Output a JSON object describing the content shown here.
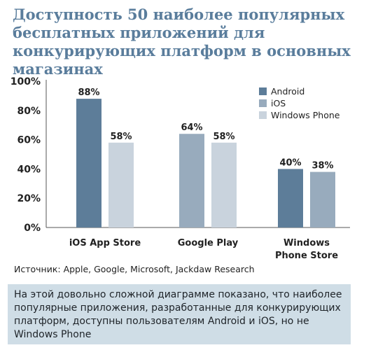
{
  "title": "Доступность 50 наиболее популярных бесплатных приложений для конкурирующих платформ в основных магазинах",
  "source": "Источник: Apple, Google, Microsoft, Jackdaw Research",
  "note": "На этой довольно сложной диаграмме показано, что наиболее популярные приложения, разработанные для конкурирующих платформ, доступны пользователям Android и iOS, но не Windows Phone",
  "colors": {
    "android": "#5d7d99",
    "ios": "#98abbd",
    "windows_phone": "#c9d3dd",
    "note_bg": "#cfdde6",
    "title": "#5a7d9c"
  },
  "chart_data": {
    "type": "bar",
    "categories": [
      [
        "iOS App Store"
      ],
      [
        "Google Play"
      ],
      [
        "Windows",
        "Phone Store"
      ]
    ],
    "series": [
      {
        "name": "Android",
        "color": "#5d7d99",
        "values": [
          88,
          null,
          40
        ]
      },
      {
        "name": "iOS",
        "color": "#98abbd",
        "values": [
          null,
          64,
          38
        ]
      },
      {
        "name": "Windows Phone",
        "color": "#c9d3dd",
        "values": [
          58,
          58,
          null
        ]
      }
    ],
    "value_suffix": "%",
    "yticks": [
      "0%",
      "20%",
      "40%",
      "60%",
      "80%",
      "100%"
    ],
    "ylim": [
      0,
      100
    ],
    "legend_position": "top-right",
    "grid": false
  }
}
